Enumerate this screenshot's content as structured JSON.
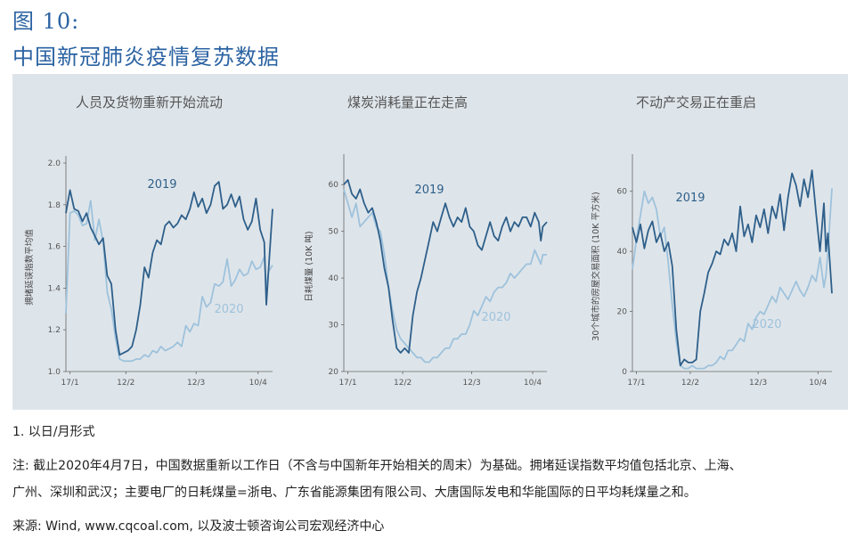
{
  "figure": {
    "label": "图 10:",
    "title": "中国新冠肺炎疫情复苏数据"
  },
  "colors": {
    "s2019": "#2e5f8a",
    "s2020": "#9ec2dc",
    "panel": "#dee5ea",
    "heading": "#2b63a3"
  },
  "chart_data": [
    {
      "type": "line",
      "title": "人员及货物重新开始流动",
      "ylabel": "拥堵延误指数平均值",
      "ylim": [
        1.0,
        2.0
      ],
      "yticks": [
        1.0,
        1.2,
        1.4,
        1.6,
        1.8,
        2.0
      ],
      "ytick_labels": [
        "1.0",
        "1.2",
        "1.4",
        "1.6",
        "1.8",
        "2.0"
      ],
      "xlim": [
        0,
        100
      ],
      "xticks": [
        {
          "x": 2,
          "label": "17/1"
        },
        {
          "x": 29,
          "label": "12/2"
        },
        {
          "x": 63,
          "label": "12/3"
        },
        {
          "x": 93,
          "label": "10/4"
        }
      ],
      "series": [
        {
          "name": "2019",
          "x": [
            0,
            2,
            4,
            6,
            8,
            10,
            12,
            14,
            16,
            18,
            20,
            22,
            24,
            26,
            28,
            30,
            32,
            34,
            36,
            38,
            40,
            42,
            44,
            46,
            48,
            50,
            52,
            54,
            56,
            58,
            60,
            62,
            64,
            66,
            68,
            70,
            72,
            74,
            76,
            78,
            80,
            82,
            84,
            86,
            88,
            90,
            92,
            94,
            96,
            97,
            98,
            100
          ],
          "values": [
            1.76,
            1.87,
            1.78,
            1.77,
            1.72,
            1.76,
            1.69,
            1.65,
            1.61,
            1.64,
            1.46,
            1.42,
            1.2,
            1.08,
            1.09,
            1.1,
            1.12,
            1.2,
            1.32,
            1.5,
            1.45,
            1.57,
            1.63,
            1.61,
            1.7,
            1.72,
            1.69,
            1.71,
            1.75,
            1.73,
            1.78,
            1.86,
            1.79,
            1.83,
            1.76,
            1.8,
            1.89,
            1.91,
            1.78,
            1.8,
            1.85,
            1.79,
            1.84,
            1.73,
            1.68,
            1.72,
            1.83,
            1.68,
            1.62,
            1.32,
            1.48,
            1.78
          ]
        },
        {
          "name": "2020",
          "x": [
            0,
            2,
            4,
            6,
            8,
            10,
            12,
            14,
            16,
            18,
            20,
            22,
            24,
            26,
            28,
            30,
            32,
            34,
            36,
            38,
            40,
            42,
            44,
            46,
            48,
            50,
            52,
            54,
            56,
            58,
            60,
            62,
            64,
            66,
            68,
            70,
            72,
            74,
            76,
            78,
            80,
            82,
            84,
            86,
            88,
            90,
            92,
            94,
            96,
            97,
            98,
            100
          ],
          "values": [
            1.28,
            1.76,
            1.77,
            1.75,
            1.7,
            1.71,
            1.82,
            1.63,
            1.73,
            1.62,
            1.38,
            1.3,
            1.16,
            1.06,
            1.05,
            1.05,
            1.05,
            1.06,
            1.06,
            1.08,
            1.07,
            1.1,
            1.09,
            1.12,
            1.1,
            1.11,
            1.12,
            1.14,
            1.12,
            1.22,
            1.19,
            1.23,
            1.22,
            1.36,
            1.31,
            1.33,
            1.42,
            1.41,
            1.43,
            1.54,
            1.41,
            1.44,
            1.49,
            1.46,
            1.47,
            1.53,
            1.49,
            1.5,
            1.55,
            1.4,
            1.48,
            1.51
          ]
        }
      ],
      "annotations": [
        {
          "text": "2019",
          "series": "2019"
        },
        {
          "text": "2020",
          "series": "2020"
        }
      ]
    },
    {
      "type": "line",
      "title": "煤炭消耗量正在走高",
      "ylabel": "日耗煤量 (10K 吨)",
      "ylim": [
        20,
        65
      ],
      "yticks": [
        20,
        30,
        40,
        50,
        60
      ],
      "ytick_labels": [
        "20",
        "30",
        "40",
        "50",
        "60"
      ],
      "xlim": [
        0,
        100
      ],
      "xticks": [
        {
          "x": 2,
          "label": "17/1"
        },
        {
          "x": 29,
          "label": "12/2"
        },
        {
          "x": 63,
          "label": "12/3"
        },
        {
          "x": 93,
          "label": "10/4"
        }
      ],
      "series": [
        {
          "name": "2019",
          "x": [
            0,
            2,
            4,
            6,
            8,
            10,
            12,
            14,
            16,
            18,
            20,
            22,
            24,
            26,
            28,
            30,
            32,
            34,
            36,
            38,
            40,
            42,
            44,
            46,
            48,
            50,
            52,
            54,
            56,
            58,
            60,
            62,
            64,
            66,
            68,
            70,
            72,
            74,
            76,
            78,
            80,
            82,
            84,
            86,
            88,
            90,
            92,
            94,
            96,
            97,
            98,
            100
          ],
          "values": [
            60,
            61,
            58,
            57,
            59,
            56,
            54,
            55,
            52,
            48,
            42,
            38,
            31,
            25,
            24,
            25,
            24,
            32,
            37,
            40,
            44,
            48,
            52,
            50,
            53,
            56,
            53,
            51,
            53,
            52,
            55,
            51,
            50,
            47,
            46,
            49,
            52,
            49,
            48,
            51,
            53,
            50,
            52,
            51,
            53,
            53,
            51,
            54,
            52,
            48,
            51,
            52
          ]
        },
        {
          "name": "2020",
          "x": [
            0,
            2,
            4,
            6,
            8,
            10,
            12,
            14,
            16,
            18,
            20,
            22,
            24,
            26,
            28,
            30,
            32,
            34,
            36,
            38,
            40,
            42,
            44,
            46,
            48,
            50,
            52,
            54,
            56,
            58,
            60,
            62,
            64,
            66,
            68,
            70,
            72,
            74,
            76,
            78,
            80,
            82,
            84,
            86,
            88,
            90,
            92,
            94,
            96,
            97,
            98,
            100
          ],
          "values": [
            59,
            56,
            53,
            56,
            51,
            52,
            53,
            54,
            51,
            50,
            45,
            38,
            33,
            29,
            27,
            26,
            25,
            24,
            23,
            23,
            22,
            22,
            23,
            23,
            24,
            25,
            25,
            27,
            27,
            28,
            28,
            30,
            33,
            32,
            34,
            36,
            35,
            37,
            38,
            38,
            39,
            41,
            40,
            41,
            42,
            43,
            43,
            46,
            44,
            43,
            45,
            45
          ]
        }
      ],
      "annotations": [
        {
          "text": "2019",
          "series": "2019"
        },
        {
          "text": "2020",
          "series": "2020"
        }
      ]
    },
    {
      "type": "line",
      "title": "不动产交易正在重启",
      "ylabel": "30个城市的房屋交易面积 (10K 平方米)",
      "ylim": [
        0,
        70
      ],
      "yticks": [
        0,
        20,
        40,
        60
      ],
      "ytick_labels": [
        "0",
        "20",
        "40",
        "60"
      ],
      "xlim": [
        0,
        100
      ],
      "xticks": [
        {
          "x": 2,
          "label": "17/1"
        },
        {
          "x": 29,
          "label": "12/2"
        },
        {
          "x": 63,
          "label": "12/3"
        },
        {
          "x": 93,
          "label": "10/4"
        }
      ],
      "series": [
        {
          "name": "2019",
          "x": [
            0,
            2,
            4,
            6,
            8,
            10,
            12,
            14,
            16,
            18,
            20,
            22,
            24,
            26,
            28,
            30,
            32,
            34,
            36,
            38,
            40,
            42,
            44,
            46,
            48,
            50,
            52,
            54,
            56,
            58,
            60,
            62,
            64,
            66,
            68,
            70,
            72,
            74,
            76,
            78,
            80,
            82,
            84,
            86,
            88,
            90,
            92,
            94,
            96,
            97,
            98,
            100
          ],
          "values": [
            48,
            43,
            49,
            41,
            47,
            50,
            43,
            46,
            40,
            43,
            35,
            14,
            2,
            4,
            3,
            3,
            4,
            20,
            26,
            33,
            36,
            40,
            39,
            44,
            42,
            46,
            40,
            55,
            45,
            49,
            43,
            52,
            48,
            54,
            46,
            55,
            51,
            59,
            47,
            58,
            66,
            62,
            55,
            64,
            58,
            67,
            53,
            40,
            56,
            40,
            46,
            26
          ]
        },
        {
          "name": "2020",
          "x": [
            0,
            2,
            4,
            6,
            8,
            10,
            12,
            14,
            16,
            18,
            20,
            22,
            24,
            26,
            28,
            30,
            32,
            34,
            36,
            38,
            40,
            42,
            44,
            46,
            48,
            50,
            52,
            54,
            56,
            58,
            60,
            62,
            64,
            66,
            68,
            70,
            72,
            74,
            76,
            78,
            80,
            82,
            84,
            86,
            88,
            90,
            92,
            94,
            96,
            97,
            98,
            100
          ],
          "values": [
            34,
            44,
            52,
            60,
            56,
            58,
            54,
            45,
            48,
            36,
            22,
            10,
            2,
            1,
            1,
            2,
            1,
            1,
            1,
            2,
            2,
            3,
            5,
            4,
            7,
            7,
            9,
            11,
            10,
            16,
            14,
            18,
            20,
            19,
            22,
            25,
            23,
            28,
            26,
            24,
            27,
            30,
            27,
            25,
            28,
            32,
            30,
            38,
            28,
            32,
            40,
            61
          ]
        }
      ],
      "annotations": [
        {
          "text": "2019",
          "series": "2019"
        },
        {
          "text": "2020",
          "series": "2020"
        }
      ]
    }
  ],
  "footnotes": {
    "note1": "1. 以日/月形式",
    "note2_line1": "注: 截止2020年4月7日，中国数据重新以工作日（不含与中国新年开始相关的周末）为基础。拥堵延误指数平均值包括北京、上海、",
    "note2_line2": "广州、深圳和武汉；主要电厂的日耗煤量=浙电、广东省能源集团有限公司、大唐国际发电和华能国际的日平均耗煤量之和。",
    "source": "来源: Wind, www.cqcoal.com, 以及波士顿咨询公司宏观经济中心"
  }
}
